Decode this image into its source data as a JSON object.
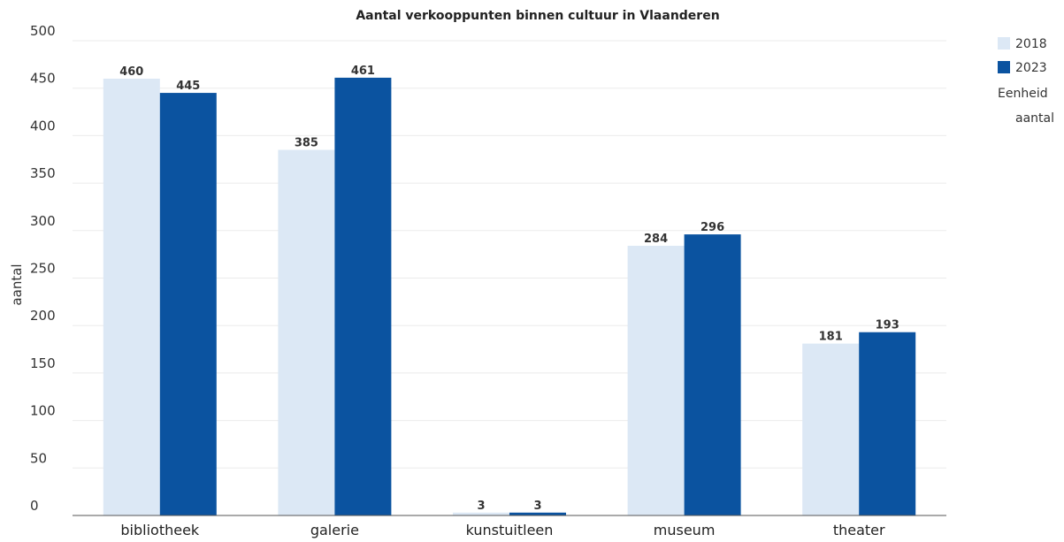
{
  "chart_data": {
    "type": "bar",
    "title": "Aantal verkooppunten binnen cultuur in Vlaanderen",
    "xlabel": "",
    "ylabel": "aantal",
    "ylim": [
      0,
      500
    ],
    "yticks": [
      0,
      50,
      100,
      150,
      200,
      250,
      300,
      350,
      400,
      450,
      500
    ],
    "grid": true,
    "legend_position": "top-right",
    "categories": [
      "bibliotheek",
      "galerie",
      "kunstuitleen",
      "museum",
      "theater"
    ],
    "series": [
      {
        "name": "2018",
        "values": [
          460,
          385,
          3,
          284,
          181
        ],
        "color": "#dce8f5"
      },
      {
        "name": "2023",
        "values": [
          445,
          461,
          3,
          296,
          193
        ],
        "color": "#0b53a0"
      }
    ],
    "legend_extra": {
      "heading": "Eenheid",
      "value": "aantal"
    }
  }
}
